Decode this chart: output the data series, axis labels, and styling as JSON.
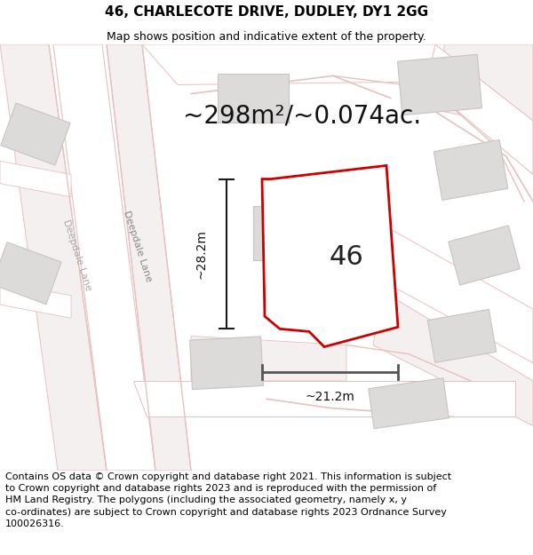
{
  "title": "46, CHARLECOTE DRIVE, DUDLEY, DY1 2GG",
  "subtitle": "Map shows position and indicative extent of the property.",
  "area_text": "~298m²/~0.074ac.",
  "label_46": "46",
  "dim_height": "~28.2m",
  "dim_width": "~21.2m",
  "footer_line1": "Contains OS data © Crown copyright and database right 2021. This information is subject",
  "footer_line2": "to Crown copyright and database rights 2023 and is reproduced with the permission of",
  "footer_line3": "HM Land Registry. The polygons (including the associated geometry, namely x, y",
  "footer_line4": "co-ordinates) are subject to Crown copyright and database rights 2023 Ordnance Survey",
  "footer_line5": "100026316.",
  "bg_color": "#f0f0f0",
  "map_bg": "#eeecec",
  "plot_fill": "#ffffff",
  "plot_stroke": "#cc0000",
  "road_light": "#f8f0f0",
  "building_color": "#dddada",
  "building_edge": "#c8c4c4",
  "road_edge": "#e8c0c0",
  "road_fill": "#f5f0f0",
  "title_fontsize": 11,
  "subtitle_fontsize": 9,
  "area_fontsize": 20,
  "label_fontsize": 22,
  "dim_fontsize": 10,
  "footer_fontsize": 8,
  "street_fontsize": 8
}
